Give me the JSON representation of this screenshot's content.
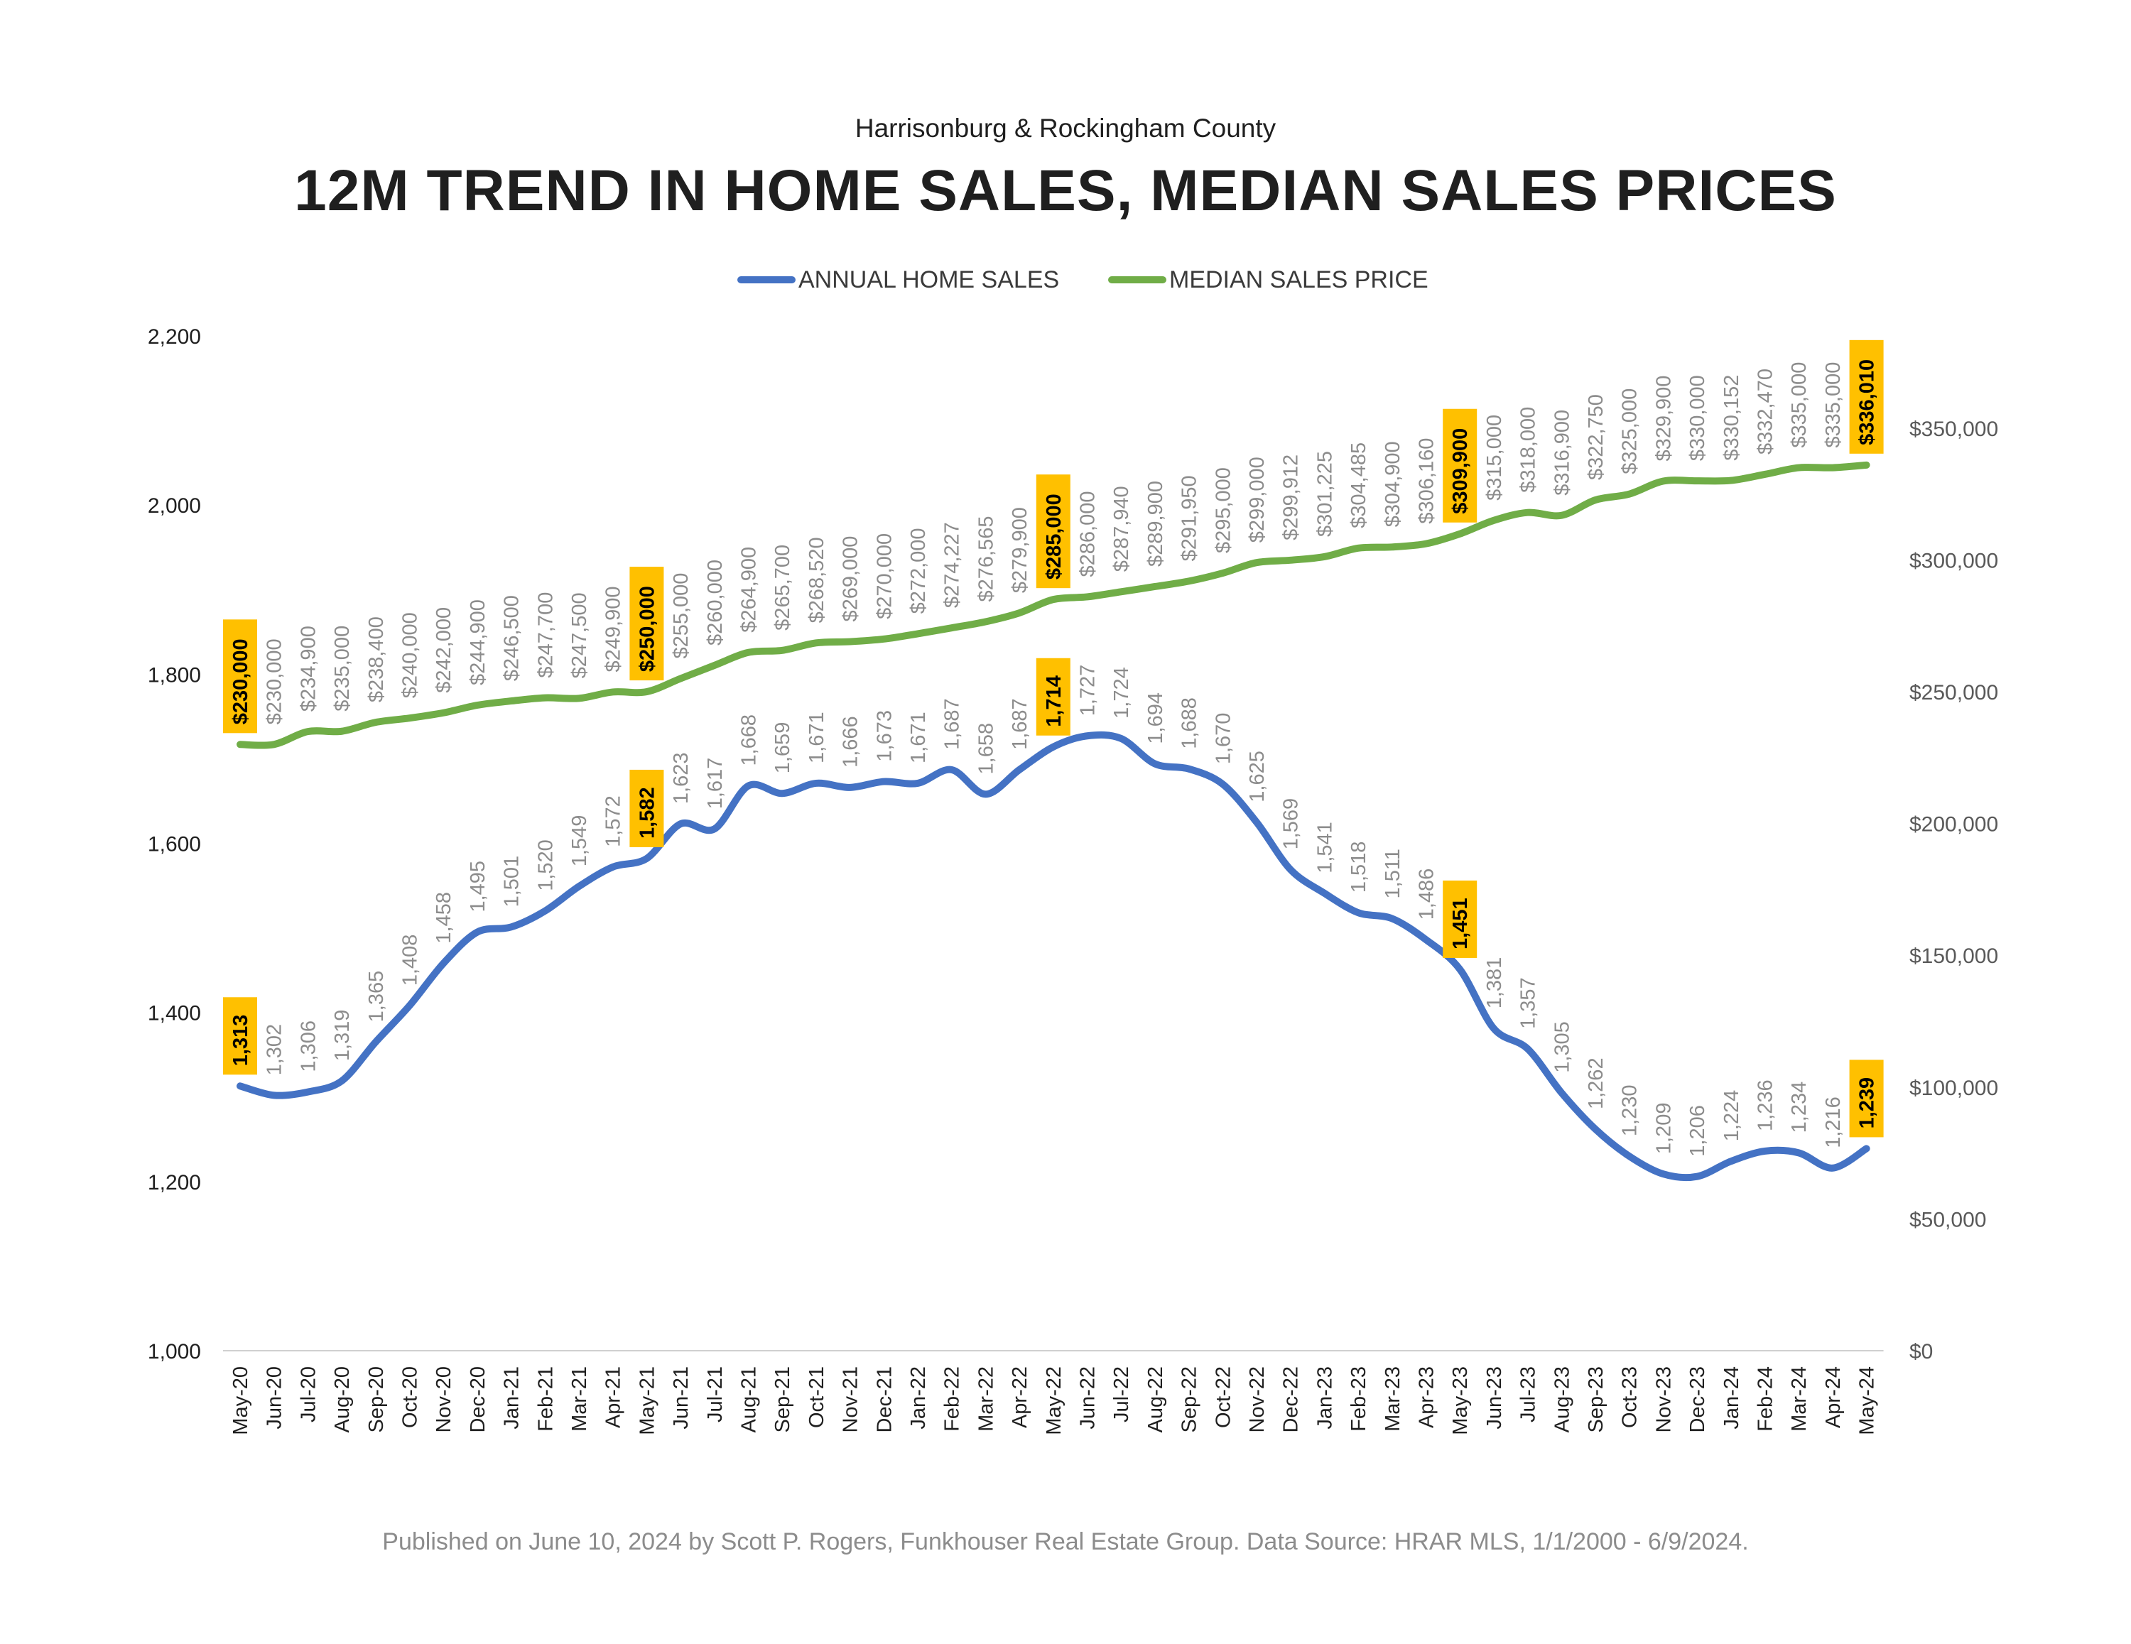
{
  "subtitle": "Harrisonburg & Rockingham County",
  "title": "12M TREND IN HOME SALES, MEDIAN SALES PRICES",
  "footer": "Published on June 10, 2024 by Scott P. Rogers, Funkhouser Real Estate Group. Data Source: HRAR MLS, 1/1/2000 - 6/9/2024.",
  "colors": {
    "sales": "#4472C4",
    "price": "#70AD47",
    "highlight": "#FFC000",
    "label": "#8c8c8c",
    "axis": "#1f1f1f"
  },
  "chart_data": {
    "type": "line",
    "title": "12M TREND IN HOME SALES, MEDIAN SALES PRICES",
    "subtitle": "Harrisonburg & Rockingham County",
    "legend_position": "top",
    "grid": false,
    "categories": [
      "May-20",
      "Jun-20",
      "Jul-20",
      "Aug-20",
      "Sep-20",
      "Oct-20",
      "Nov-20",
      "Dec-20",
      "Jan-21",
      "Feb-21",
      "Mar-21",
      "Apr-21",
      "May-21",
      "Jun-21",
      "Jul-21",
      "Aug-21",
      "Sep-21",
      "Oct-21",
      "Nov-21",
      "Dec-21",
      "Jan-22",
      "Feb-22",
      "Mar-22",
      "Apr-22",
      "May-22",
      "Jun-22",
      "Jul-22",
      "Aug-22",
      "Sep-22",
      "Oct-22",
      "Nov-22",
      "Dec-22",
      "Jan-23",
      "Feb-23",
      "Mar-23",
      "Apr-23",
      "May-23",
      "Jun-23",
      "Jul-23",
      "Aug-23",
      "Sep-23",
      "Oct-23",
      "Nov-23",
      "Dec-23",
      "Jan-24",
      "Feb-24",
      "Mar-24",
      "Apr-24",
      "May-24"
    ],
    "left_axis": {
      "min": 1000,
      "max": 2200,
      "ticks": [
        "1,000",
        "1,200",
        "1,400",
        "1,600",
        "1,800",
        "2,000",
        "2,200"
      ]
    },
    "right_axis": {
      "min": 0,
      "max": 385000,
      "ticks": [
        "$0",
        "$50,000",
        "$100,000",
        "$150,000",
        "$200,000",
        "$250,000",
        "$300,000",
        "$350,000"
      ]
    },
    "series": [
      {
        "name": "ANNUAL HOME SALES",
        "axis": "left",
        "color": "#4472C4",
        "values": [
          1313,
          1302,
          1306,
          1319,
          1365,
          1408,
          1458,
          1495,
          1501,
          1520,
          1549,
          1572,
          1582,
          1623,
          1617,
          1668,
          1659,
          1671,
          1666,
          1673,
          1671,
          1687,
          1658,
          1687,
          1714,
          1727,
          1724,
          1694,
          1688,
          1670,
          1625,
          1569,
          1541,
          1518,
          1511,
          1486,
          1451,
          1381,
          1357,
          1305,
          1262,
          1230,
          1209,
          1206,
          1224,
          1236,
          1234,
          1216,
          1239
        ],
        "labels": [
          "1,313",
          "1,302",
          "1,306",
          "1,319",
          "1,365",
          "1,408",
          "1,458",
          "1,495",
          "1,501",
          "1,520",
          "1,549",
          "1,572",
          "1,582",
          "1,623",
          "1,617",
          "1,668",
          "1,659",
          "1,671",
          "1,666",
          "1,673",
          "1,671",
          "1,687",
          "1,658",
          "1,687",
          "1,714",
          "1,727",
          "1,724",
          "1,694",
          "1,688",
          "1,670",
          "1,625",
          "1,569",
          "1,541",
          "1,518",
          "1,511",
          "1,486",
          "1,451",
          "1,381",
          "1,357",
          "1,305",
          "1,262",
          "1,230",
          "1,209",
          "1,206",
          "1,224",
          "1,236",
          "1,234",
          "1,216",
          "1,239"
        ],
        "highlighted": [
          0,
          12,
          24,
          36,
          48
        ]
      },
      {
        "name": "MEDIAN SALES PRICE",
        "axis": "right",
        "color": "#70AD47",
        "values": [
          230000,
          230000,
          234900,
          235000,
          238400,
          240000,
          242000,
          244900,
          246500,
          247700,
          247500,
          249900,
          250000,
          255000,
          260000,
          264900,
          265700,
          268520,
          269000,
          270000,
          272000,
          274227,
          276565,
          279900,
          285000,
          286000,
          287940,
          289900,
          291950,
          295000,
          299000,
          299912,
          301225,
          304485,
          304900,
          306160,
          309900,
          315000,
          318000,
          316900,
          322750,
          325000,
          329900,
          330000,
          330152,
          332470,
          335000,
          335000,
          336010
        ],
        "labels": [
          "$230,000",
          "$230,000",
          "$234,900",
          "$235,000",
          "$238,400",
          "$240,000",
          "$242,000",
          "$244,900",
          "$246,500",
          "$247,700",
          "$247,500",
          "$249,900",
          "$250,000",
          "$255,000",
          "$260,000",
          "$264,900",
          "$265,700",
          "$268,520",
          "$269,000",
          "$270,000",
          "$272,000",
          "$274,227",
          "$276,565",
          "$279,900",
          "$285,000",
          "$286,000",
          "$287,940",
          "$289,900",
          "$291,950",
          "$295,000",
          "$299,000",
          "$299,912",
          "$301,225",
          "$304,485",
          "$304,900",
          "$306,160",
          "$309,900",
          "$315,000",
          "$318,000",
          "$316,900",
          "$322,750",
          "$325,000",
          "$329,900",
          "$330,000",
          "$330,152",
          "$332,470",
          "$335,000",
          "$335,000",
          "$336,010"
        ],
        "highlighted": [
          0,
          12,
          24,
          36,
          48
        ]
      }
    ]
  }
}
